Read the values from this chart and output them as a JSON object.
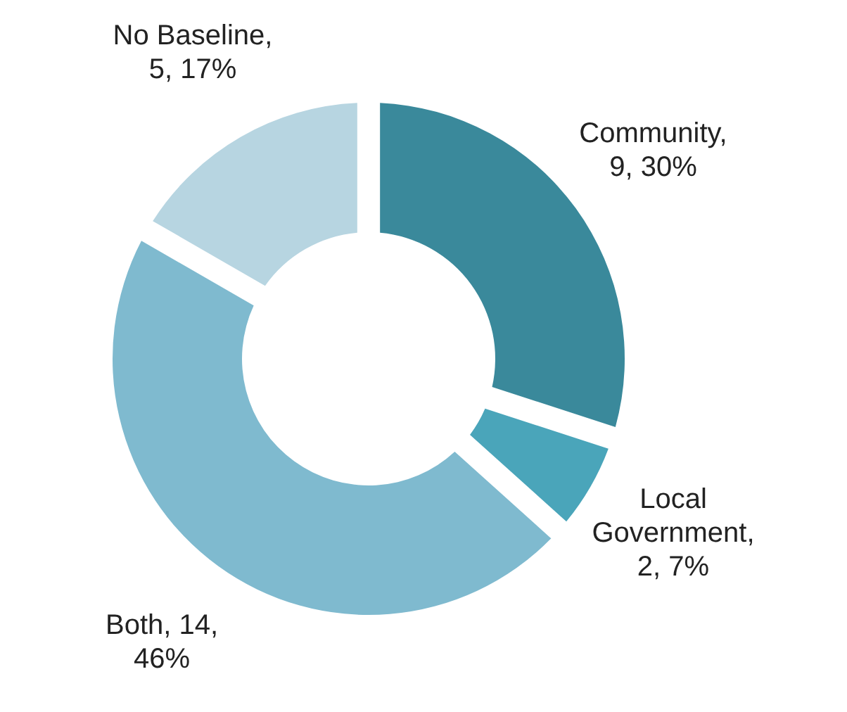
{
  "chart_data": {
    "type": "donut",
    "categories": [
      "Community",
      "Local Government",
      "Both",
      "No Baseline"
    ],
    "values": [
      9,
      2,
      14,
      5
    ],
    "value_labels": [
      ", 9, 30%",
      ", 2, 7%",
      ", 14, 46%",
      ", 5, 17%"
    ],
    "colors": [
      "#3a899b",
      "#4aa5ba",
      "#7fbacf",
      "#b7d5e1"
    ]
  }
}
